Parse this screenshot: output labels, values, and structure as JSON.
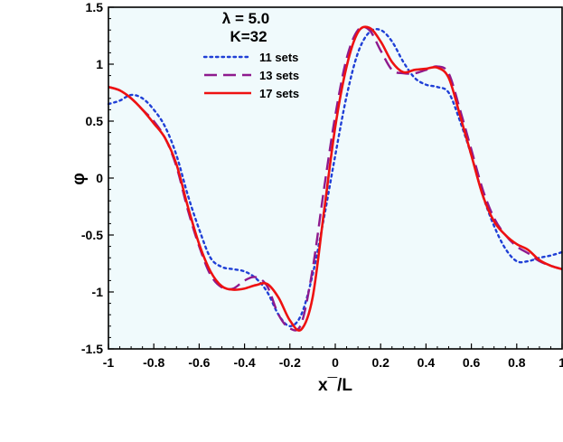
{
  "chart_data": {
    "type": "line",
    "xlabel": "x¯/L",
    "ylabel": "φ",
    "xlim": [
      -1,
      1
    ],
    "ylim": [
      -1.5,
      1.5
    ],
    "x_ticks": [
      "-1",
      "-0.8",
      "-0.6",
      "-0.4",
      "-0.2",
      "0",
      "0.2",
      "0.4",
      "0.6",
      "0.8",
      "1"
    ],
    "y_ticks": [
      "1.5",
      "1",
      "0.5",
      "0",
      "-0.5",
      "-1",
      "-1.5"
    ],
    "annotations": [
      "λ = 5.0",
      "K=32"
    ],
    "legend_position": "top-center",
    "plot_background": "#f0fafc",
    "series": [
      {
        "name": "11 sets",
        "color": "#1f3fd6",
        "style": "dotted",
        "x": [
          -1.0,
          -0.95,
          -0.9,
          -0.85,
          -0.8,
          -0.75,
          -0.7,
          -0.65,
          -0.6,
          -0.55,
          -0.5,
          -0.45,
          -0.4,
          -0.35,
          -0.3,
          -0.25,
          -0.2,
          -0.15,
          -0.1,
          -0.05,
          0.0,
          0.05,
          0.1,
          0.15,
          0.2,
          0.25,
          0.3,
          0.35,
          0.4,
          0.45,
          0.5,
          0.55,
          0.6,
          0.65,
          0.7,
          0.75,
          0.8,
          0.85,
          0.9,
          0.95,
          1.0
        ],
        "values": [
          0.65,
          0.68,
          0.73,
          0.7,
          0.6,
          0.45,
          0.2,
          -0.15,
          -0.45,
          -0.7,
          -0.78,
          -0.8,
          -0.82,
          -0.88,
          -1.0,
          -1.2,
          -1.3,
          -1.2,
          -0.85,
          -0.35,
          0.2,
          0.72,
          1.1,
          1.28,
          1.3,
          1.2,
          1.02,
          0.88,
          0.82,
          0.8,
          0.75,
          0.5,
          0.2,
          -0.15,
          -0.42,
          -0.62,
          -0.73,
          -0.73,
          -0.7,
          -0.68,
          -0.65
        ]
      },
      {
        "name": "13 sets",
        "color": "#8e1a8e",
        "style": "dashed",
        "x": [
          -1.0,
          -0.95,
          -0.9,
          -0.85,
          -0.8,
          -0.75,
          -0.7,
          -0.65,
          -0.6,
          -0.55,
          -0.5,
          -0.45,
          -0.4,
          -0.35,
          -0.3,
          -0.25,
          -0.2,
          -0.15,
          -0.1,
          -0.05,
          0.0,
          0.05,
          0.1,
          0.15,
          0.2,
          0.25,
          0.3,
          0.35,
          0.4,
          0.45,
          0.5,
          0.55,
          0.6,
          0.65,
          0.7,
          0.75,
          0.8,
          0.85,
          0.9,
          0.95,
          1.0
        ],
        "values": [
          0.8,
          0.77,
          0.7,
          0.6,
          0.5,
          0.35,
          0.1,
          -0.28,
          -0.6,
          -0.85,
          -0.96,
          -0.97,
          -0.9,
          -0.87,
          -0.95,
          -1.2,
          -1.32,
          -1.28,
          -0.8,
          -0.1,
          0.55,
          1.05,
          1.3,
          1.3,
          1.12,
          0.95,
          0.92,
          0.92,
          0.95,
          0.98,
          0.92,
          0.6,
          0.25,
          -0.1,
          -0.35,
          -0.5,
          -0.6,
          -0.66,
          -0.73,
          -0.77,
          -0.8
        ]
      },
      {
        "name": "17 sets",
        "color": "#ee1111",
        "style": "solid",
        "x": [
          -1.0,
          -0.95,
          -0.9,
          -0.85,
          -0.8,
          -0.75,
          -0.7,
          -0.65,
          -0.6,
          -0.55,
          -0.5,
          -0.45,
          -0.4,
          -0.35,
          -0.3,
          -0.25,
          -0.2,
          -0.15,
          -0.1,
          -0.05,
          0.0,
          0.05,
          0.1,
          0.15,
          0.2,
          0.25,
          0.3,
          0.35,
          0.4,
          0.45,
          0.5,
          0.55,
          0.6,
          0.65,
          0.7,
          0.75,
          0.8,
          0.85,
          0.9,
          0.95,
          1.0
        ],
        "values": [
          0.8,
          0.77,
          0.7,
          0.6,
          0.48,
          0.35,
          0.12,
          -0.25,
          -0.58,
          -0.82,
          -0.95,
          -0.98,
          -0.97,
          -0.94,
          -0.93,
          -1.05,
          -1.25,
          -1.33,
          -1.05,
          -0.3,
          0.45,
          0.98,
          1.28,
          1.32,
          1.2,
          1.02,
          0.93,
          0.95,
          0.96,
          0.97,
          0.88,
          0.55,
          0.2,
          -0.15,
          -0.38,
          -0.5,
          -0.58,
          -0.63,
          -0.72,
          -0.77,
          -0.8
        ]
      }
    ]
  }
}
